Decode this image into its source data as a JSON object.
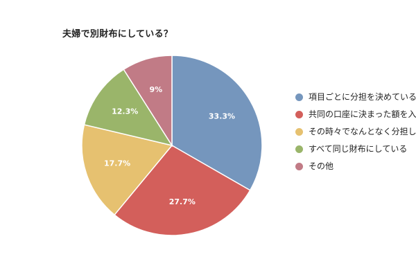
{
  "chart_data": {
    "type": "pie",
    "title": "夫婦で別財布にしている？",
    "slices": [
      {
        "label": "項目ごとに分担を決めている",
        "value": 33.3,
        "display": "33.3%",
        "color": "#7596bd"
      },
      {
        "label": "共同の口座に決まった額を入れて管理している",
        "value": 27.7,
        "display": "27.7%",
        "color": "#d35f5b"
      },
      {
        "label": "その時々でなんとなく分担している",
        "value": 17.7,
        "display": "17.7%",
        "color": "#e6c170"
      },
      {
        "label": "すべて同じ財布にしている",
        "value": 12.3,
        "display": "12.3%",
        "color": "#9ab56a"
      },
      {
        "label": "その他",
        "value": 9,
        "display": "9%",
        "color": "#c17b86"
      }
    ],
    "legend_position": "right"
  }
}
